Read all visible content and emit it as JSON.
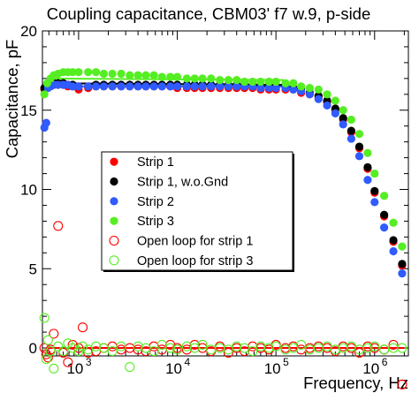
{
  "chart_data": {
    "type": "scatter",
    "title": "Coupling capacitance, CBM03' f7 w.9, p-side",
    "xlabel": "Frequency, Hz",
    "ylabel": "Capacitance, pF",
    "x_scale": "log",
    "xlim": [
      430,
      2200000
    ],
    "ylim": [
      -0.5,
      20
    ],
    "y_ticks": [
      0,
      5,
      10,
      15,
      20
    ],
    "y_tick_labels": [
      "0",
      "5",
      "10",
      "15",
      "20"
    ],
    "x_major_ticks": [
      1000,
      10000,
      100000,
      1000000
    ],
    "x_tick_labels": [
      {
        "base": "10",
        "exp": "3"
      },
      {
        "base": "10",
        "exp": "4"
      },
      {
        "base": "10",
        "exp": "5"
      },
      {
        "base": "10",
        "exp": "6"
      }
    ],
    "grid": false,
    "legend_position": "center-left",
    "series": [
      {
        "name": "Strip 1",
        "color": "#ff0000",
        "marker": "filled-circle",
        "x": [
          450,
          480,
          520,
          560,
          620,
          700,
          780,
          870,
          1000,
          1250,
          1500,
          1800,
          2200,
          2700,
          3300,
          4000,
          4800,
          5800,
          7000,
          8500,
          10000,
          12500,
          15000,
          18000,
          22000,
          27000,
          33000,
          40000,
          48000,
          58000,
          70000,
          85000,
          100000,
          125000,
          150000,
          180000,
          220000,
          270000,
          330000,
          400000,
          480000,
          580000,
          700000,
          850000,
          1000000,
          1250000,
          1550000,
          1900000
        ],
        "values": [
          16.3,
          16.5,
          16.6,
          16.6,
          16.6,
          16.6,
          16.5,
          16.5,
          16.3,
          16.4,
          16.5,
          16.5,
          16.5,
          16.5,
          16.5,
          16.5,
          16.5,
          16.5,
          16.5,
          16.5,
          16.4,
          16.4,
          16.4,
          16.4,
          16.4,
          16.4,
          16.4,
          16.4,
          16.4,
          16.4,
          16.3,
          16.3,
          16.3,
          16.3,
          16.3,
          16.1,
          16.0,
          15.8,
          15.5,
          15.0,
          14.4,
          13.6,
          12.6,
          11.3,
          9.8,
          8.3,
          6.7,
          5.2
        ]
      },
      {
        "name": "Strip 1, w.o.Gnd",
        "color": "#000000",
        "marker": "filled-circle",
        "x": [
          450,
          480,
          520,
          560,
          620,
          700,
          780,
          870,
          1000,
          1250,
          1500,
          1800,
          2200,
          2700,
          3300,
          4000,
          4800,
          5800,
          7000,
          8500,
          10000,
          12500,
          15000,
          18000,
          22000,
          27000,
          33000,
          40000,
          48000,
          58000,
          70000,
          85000,
          100000,
          125000,
          150000,
          180000,
          220000,
          270000,
          330000,
          400000,
          480000,
          580000,
          700000,
          850000,
          1000000,
          1250000,
          1550000,
          1900000
        ],
        "values": [
          16.4,
          16.6,
          16.7,
          16.7,
          16.7,
          16.7,
          16.6,
          16.6,
          16.5,
          16.5,
          16.6,
          16.6,
          16.6,
          16.6,
          16.6,
          16.6,
          16.6,
          16.6,
          16.6,
          16.6,
          16.6,
          16.6,
          16.6,
          16.6,
          16.6,
          16.6,
          16.6,
          16.6,
          16.6,
          16.6,
          16.5,
          16.5,
          16.5,
          16.5,
          16.4,
          16.3,
          16.1,
          15.9,
          15.6,
          15.1,
          14.5,
          13.7,
          12.7,
          11.4,
          9.9,
          8.4,
          6.8,
          5.3
        ]
      },
      {
        "name": "Strip 2",
        "color": "#2f5bff",
        "marker": "filled-circle",
        "x": [
          450,
          470,
          490,
          520,
          560,
          620,
          700,
          780,
          870,
          1000,
          1250,
          1500,
          1800,
          2200,
          2700,
          3300,
          4000,
          4800,
          5800,
          7000,
          8500,
          10000,
          12500,
          15000,
          18000,
          22000,
          27000,
          33000,
          40000,
          48000,
          58000,
          70000,
          85000,
          100000,
          125000,
          150000,
          180000,
          220000,
          270000,
          330000,
          400000,
          480000,
          580000,
          700000,
          850000,
          1000000,
          1250000,
          1550000,
          1900000
        ],
        "values": [
          13.9,
          14.2,
          16.4,
          16.5,
          16.6,
          16.6,
          16.6,
          16.6,
          16.5,
          16.5,
          16.5,
          16.5,
          16.5,
          16.5,
          16.5,
          16.5,
          16.5,
          16.5,
          16.5,
          16.5,
          16.5,
          16.5,
          16.5,
          16.5,
          16.5,
          16.5,
          16.5,
          16.5,
          16.5,
          16.5,
          16.5,
          16.4,
          16.4,
          16.4,
          16.4,
          16.3,
          16.2,
          16.0,
          15.7,
          15.3,
          14.8,
          14.1,
          13.2,
          12.1,
          10.6,
          9.2,
          7.6,
          6.1,
          4.7
        ]
      },
      {
        "name": "Strip 3",
        "color": "#55ee22",
        "marker": "filled-circle",
        "x": [
          450,
          480,
          520,
          560,
          620,
          700,
          780,
          870,
          1000,
          1250,
          1500,
          1800,
          2200,
          2700,
          3300,
          4000,
          4800,
          5800,
          7000,
          8500,
          10000,
          12500,
          15000,
          18000,
          22000,
          27000,
          33000,
          40000,
          48000,
          58000,
          70000,
          85000,
          100000,
          125000,
          150000,
          180000,
          220000,
          270000,
          330000,
          400000,
          480000,
          580000,
          700000,
          850000,
          1000000,
          1250000,
          1550000,
          1900000
        ],
        "values": [
          16.0,
          16.7,
          17.0,
          17.2,
          17.3,
          17.4,
          17.4,
          17.4,
          17.4,
          17.4,
          17.4,
          17.3,
          17.3,
          17.3,
          17.2,
          17.2,
          17.2,
          17.2,
          17.1,
          17.1,
          17.1,
          17.0,
          17.0,
          17.0,
          17.0,
          16.9,
          16.9,
          16.9,
          16.8,
          16.8,
          16.8,
          16.8,
          16.8,
          16.7,
          16.7,
          16.5,
          16.4,
          16.3,
          16.0,
          15.6,
          15.0,
          14.4,
          13.5,
          12.3,
          11.0,
          9.6,
          7.9,
          6.4
        ]
      },
      {
        "name": "Open loop for strip 1",
        "color": "#ff0000",
        "marker": "open-circle",
        "x": [
          450,
          470,
          490,
          520,
          560,
          620,
          700,
          780,
          870,
          1000,
          1100,
          1250,
          1500,
          1800,
          2200,
          2700,
          3300,
          4000,
          4800,
          5800,
          7000,
          8500,
          10000,
          12500,
          15000,
          18000,
          22000,
          27000,
          33000,
          40000,
          48000,
          58000,
          70000,
          85000,
          100000,
          125000,
          150000,
          180000,
          220000,
          270000,
          330000,
          400000,
          480000,
          580000,
          700000,
          850000,
          1000000,
          1250000,
          1550000,
          1900000
        ],
        "values": [
          0.0,
          -0.4,
          -0.6,
          -0.1,
          0.9,
          7.7,
          -0.3,
          -0.9,
          0.2,
          0.0,
          1.3,
          -0.3,
          -0.2,
          0.0,
          0.1,
          -0.1,
          0.0,
          -0.1,
          -0.2,
          0.1,
          -0.1,
          0.2,
          0.0,
          -0.1,
          0.2,
          0.0,
          -0.2,
          0.1,
          -0.3,
          0.0,
          -0.2,
          0.1,
          0.0,
          -0.1,
          0.2,
          0.0,
          0.1,
          -0.1,
          0.0,
          0.1,
          0.0,
          -0.2,
          0.1,
          0.0,
          -0.3,
          0.1,
          0.0,
          -0.1,
          0.2,
          -2.3
        ]
      },
      {
        "name": "Open loop for strip 3",
        "color": "#55ee22",
        "marker": "open-circle",
        "x": [
          450,
          470,
          490,
          520,
          560,
          620,
          700,
          780,
          870,
          1000,
          1100,
          1250,
          1500,
          1800,
          2200,
          2700,
          3300,
          4000,
          4800,
          5800,
          7000,
          8500,
          10000,
          12500,
          15000,
          18000,
          22000,
          27000,
          33000,
          40000,
          48000,
          58000,
          70000,
          85000,
          100000,
          125000,
          150000,
          180000,
          220000,
          270000,
          330000,
          400000,
          480000,
          580000,
          700000,
          850000,
          1000000,
          1250000,
          1550000,
          1900000
        ],
        "values": [
          1.9,
          -0.7,
          0.5,
          -0.2,
          -1.3,
          0.1,
          -0.2,
          0.3,
          0.0,
          -0.2,
          0.1,
          -0.1,
          0.1,
          0.0,
          -0.2,
          0.1,
          -1.2,
          0.1,
          0.0,
          -0.2,
          0.2,
          0.0,
          -0.1,
          0.1,
          0.0,
          0.2,
          -0.1,
          0.0,
          -0.1,
          0.1,
          0.0,
          -0.2,
          0.1,
          0.0,
          0.1,
          -0.1,
          0.0,
          0.2,
          -0.1,
          0.0,
          0.1,
          -0.1,
          0.0,
          0.1,
          -0.1,
          0.0,
          0.1,
          -0.1,
          0.0,
          0.0
        ]
      }
    ],
    "fit_lines": [
      {
        "color": "#55ee22",
        "x": [
          480,
          120000
        ],
        "values": [
          17.0,
          16.9
        ]
      },
      {
        "color": "#000000",
        "x": [
          480,
          120000
        ],
        "values": [
          16.7,
          16.6
        ]
      },
      {
        "color": "#2f5bff",
        "x": [
          480,
          120000
        ],
        "values": [
          16.5,
          16.5
        ]
      },
      {
        "color": "#55ee22",
        "x": [
          480,
          2000000
        ],
        "values": [
          0.0,
          0.0
        ]
      },
      {
        "color": "#ff0000",
        "x": [
          480,
          2000000
        ],
        "values": [
          0.0,
          0.0
        ]
      }
    ]
  }
}
